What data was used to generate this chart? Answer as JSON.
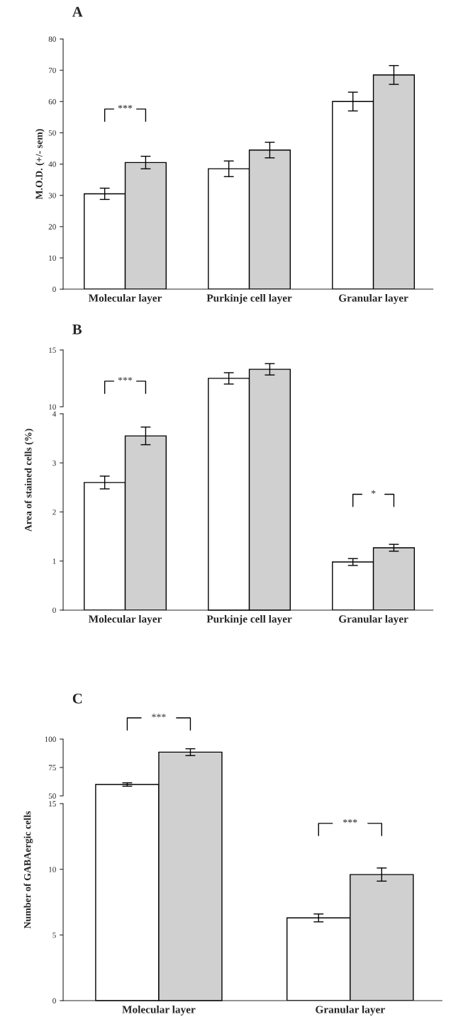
{
  "chart_data": [
    {
      "type": "bar",
      "title": "A",
      "ylabel": "M.O.D. (+/- sem)",
      "categories": [
        "Molecular layer",
        "Purkinje cell layer",
        "Granular layer"
      ],
      "series": [
        {
          "color": "#ffffff",
          "values": [
            30.5,
            38.5,
            60
          ],
          "errors": [
            1.8,
            2.5,
            3
          ]
        },
        {
          "color": "#d0d0d0",
          "values": [
            40.5,
            44.5,
            68.5
          ],
          "errors": [
            2,
            2.5,
            3
          ]
        }
      ],
      "ylim": [
        0,
        80
      ],
      "yticks": [
        0,
        10,
        20,
        30,
        40,
        50,
        60,
        70,
        80
      ],
      "grid": false,
      "annotations": [
        "***"
      ]
    },
    {
      "type": "bar",
      "title": "B",
      "categories": [
        null,
        null,
        null
      ],
      "series": [
        {
          "color": "#ffffff",
          "values": [
            null,
            12.5,
            null
          ],
          "errors": [
            null,
            0.5,
            null
          ]
        },
        {
          "color": "#d0d0d0",
          "values": [
            null,
            13.3,
            null
          ],
          "errors": [
            null,
            0.5,
            null
          ]
        }
      ],
      "ylim": [
        10,
        15
      ],
      "yticks": [
        10,
        15
      ],
      "tick_labels": "y",
      "grid": false,
      "annotations": [
        "***"
      ]
    },
    {
      "type": "bar",
      "ylabel": "Area of stained cells (%)",
      "categories": [
        "Molecular layer",
        "Purkinje cell layer",
        "Granular layer"
      ],
      "series": [
        {
          "color": "#ffffff",
          "values": [
            2.6,
            null,
            0.98
          ],
          "errors": [
            0.13,
            null,
            0.07
          ]
        },
        {
          "color": "#d0d0d0",
          "values": [
            3.55,
            null,
            1.27
          ],
          "errors": [
            0.18,
            null,
            0.07
          ]
        }
      ],
      "ylim": [
        0,
        4
      ],
      "yticks": [
        0,
        1,
        2,
        3,
        4
      ],
      "grid": false,
      "annotations": [
        "*"
      ]
    },
    {
      "type": "bar",
      "title": "C",
      "categories": [
        null,
        null
      ],
      "series": [
        {
          "color": "#ffffff",
          "values": [
            60,
            null
          ],
          "errors": [
            1.5,
            null
          ]
        },
        {
          "color": "#d0d0d0",
          "values": [
            88.5,
            null
          ],
          "errors": [
            3,
            null
          ]
        }
      ],
      "ylim": [
        50,
        100
      ],
      "yticks": [
        50,
        75,
        100
      ],
      "tick_labels": "y",
      "grid": false,
      "annotations": [
        "***"
      ]
    },
    {
      "type": "bar",
      "ylabel": "Number of GABAergic cells",
      "categories": [
        "Molecular layer",
        "Granular layer"
      ],
      "series": [
        {
          "color": "#ffffff",
          "values": [
            null,
            6.3
          ],
          "errors": [
            null,
            0.3
          ]
        },
        {
          "color": "#d0d0d0",
          "values": [
            null,
            9.6
          ],
          "errors": [
            null,
            0.5
          ]
        }
      ],
      "ylim": [
        0,
        15
      ],
      "yticks": [
        0,
        5,
        10,
        15
      ],
      "grid": false,
      "annotations": [
        "***"
      ]
    }
  ]
}
